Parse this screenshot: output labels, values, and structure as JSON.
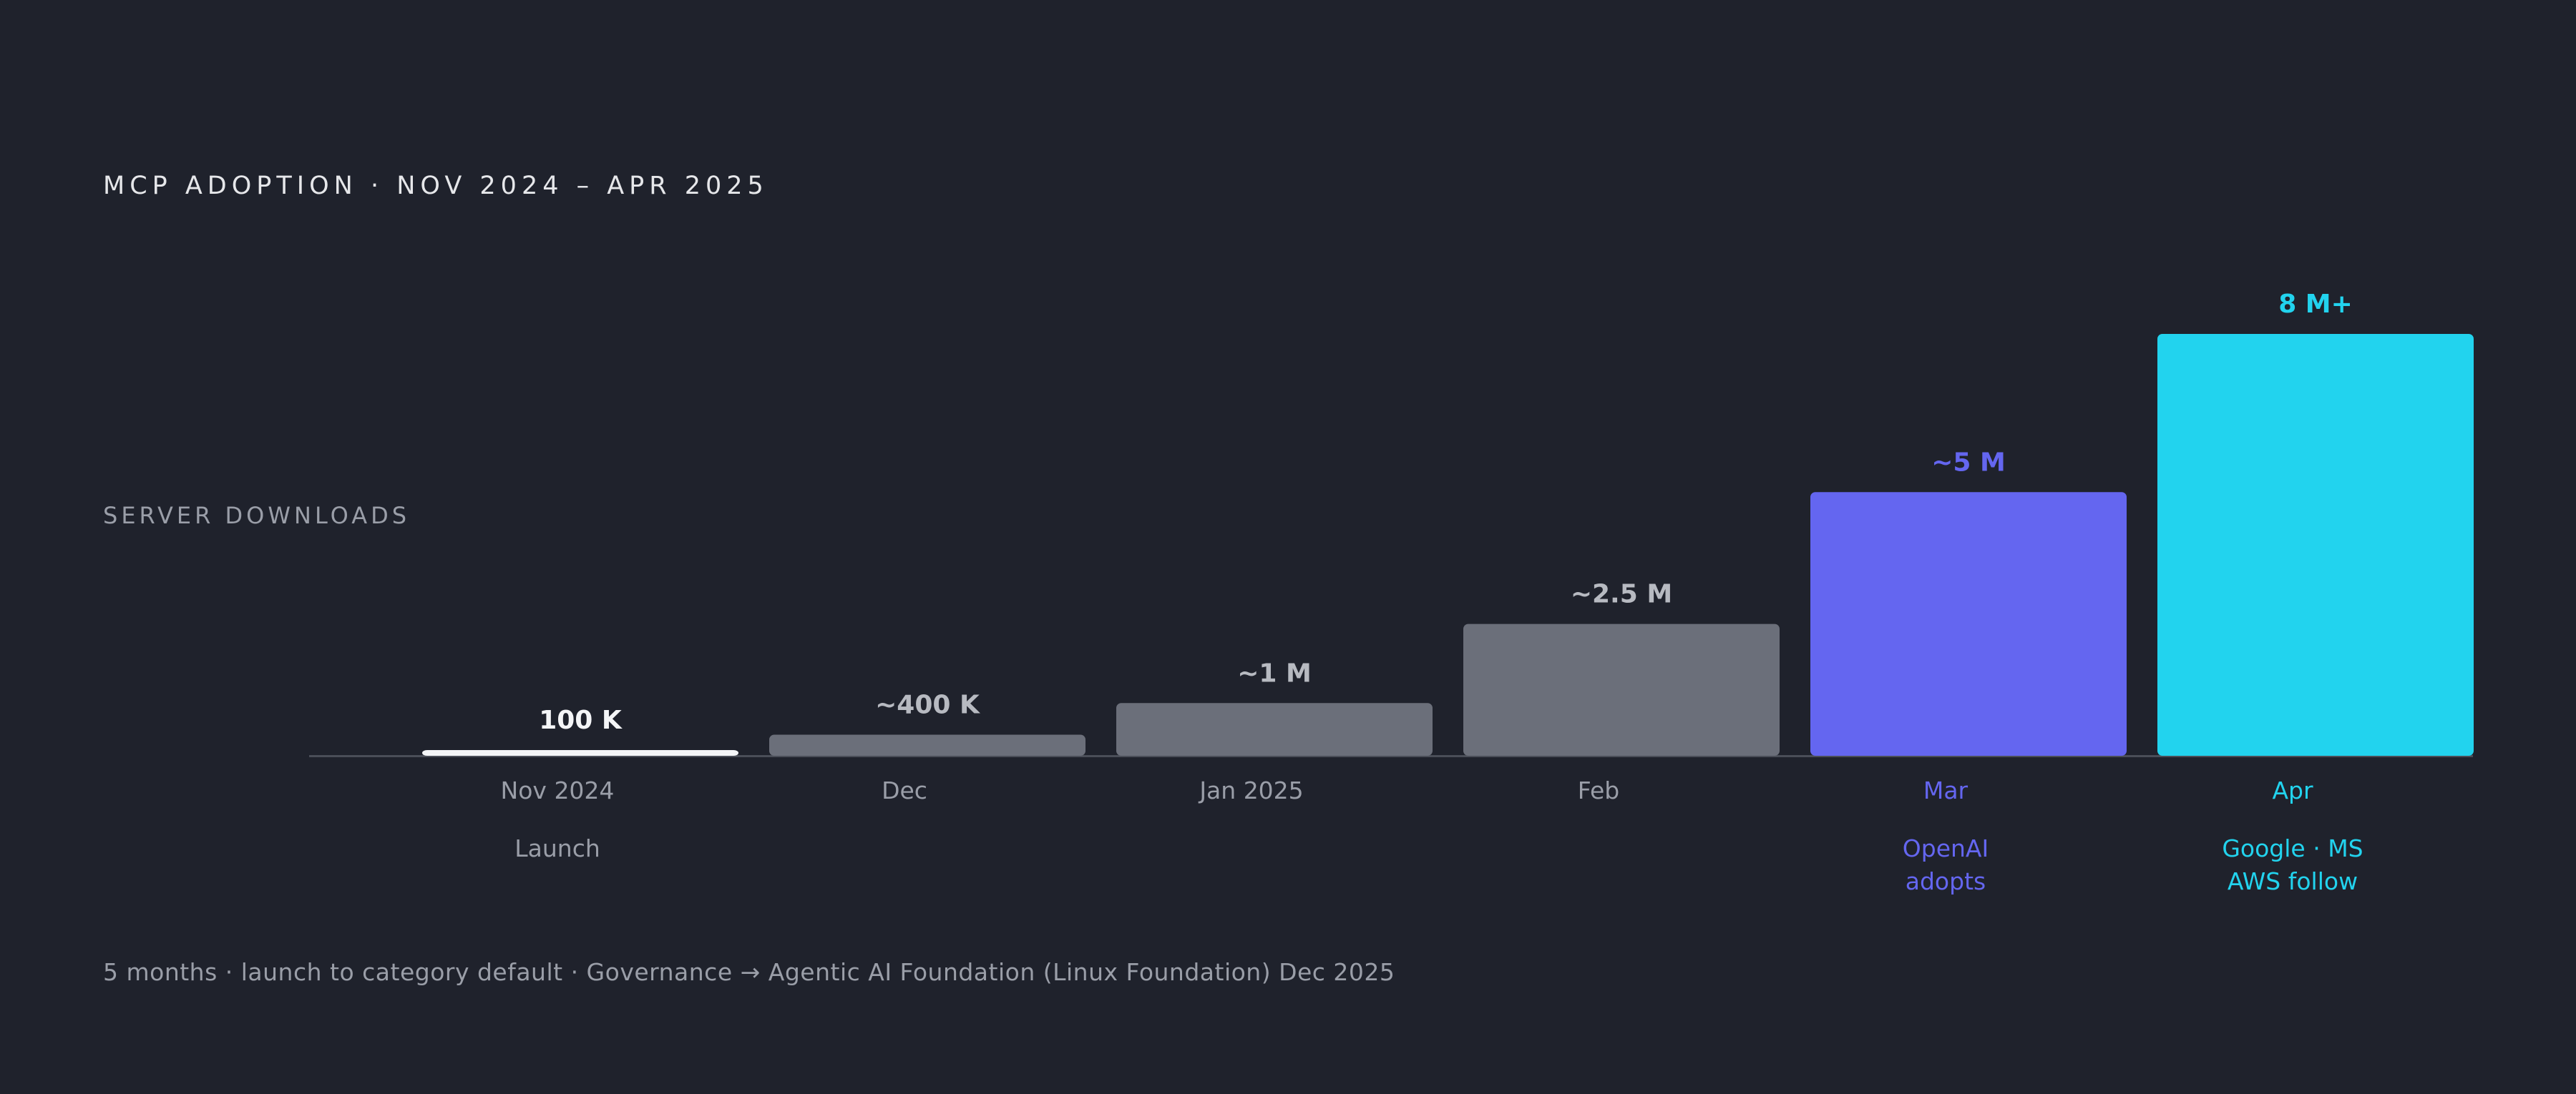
{
  "title": "MCP ADOPTION · NOV 2024 – APR 2025",
  "footer": "5 months · launch to category default  ·  Governance → Agentic AI Foundation (Linux Foundation) Dec 2025",
  "colors": {
    "background": "#1f222c",
    "bar_default": "#6b6f7a",
    "bar_launch": "#f4f5f7",
    "accent_openai": "#6466f0",
    "accent_google": "#22d3ee",
    "axis": "#4a4e58",
    "muted_text": "#9a9ea8",
    "value_text": "#b7bac1"
  },
  "chart_data": {
    "type": "bar",
    "ylabel": "SERVER DOWNLOADS",
    "xlabel": "",
    "categories": [
      "Nov 2024",
      "Dec",
      "Jan 2025",
      "Feb",
      "Mar",
      "Apr"
    ],
    "values": [
      100000,
      400000,
      1000000,
      2500000,
      5000000,
      8000000
    ],
    "value_labels": [
      "100 K",
      "~400 K",
      "~1 M",
      "~2.5 M",
      "~5 M",
      "8 M+"
    ],
    "annotations": [
      [
        "Launch"
      ],
      [],
      [],
      [],
      [
        "OpenAI",
        "adopts"
      ],
      [
        "Google · MS",
        "AWS follow"
      ]
    ],
    "highlight": [
      "launch",
      "default",
      "default",
      "default",
      "openai",
      "google"
    ],
    "ylim": [
      0,
      8000000
    ],
    "grid": false,
    "legend": "none"
  }
}
